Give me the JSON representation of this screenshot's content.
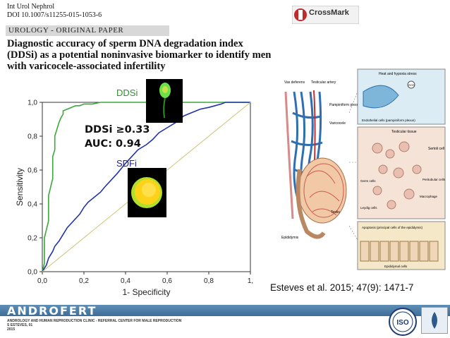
{
  "header": {
    "journal": "Int Urol Nephrol",
    "doi": "DOI 10.1007/s11255-015-1053-6",
    "crossmark": "CrossMark",
    "section": "UROLOGY - ORIGINAL PAPER"
  },
  "paper": {
    "title_lines": [
      "Diagnostic accuracy of sperm DNA degradation index",
      "(DDSi) as a potential noninvasive biomarker to identify men",
      "with varicocele-associated infertility"
    ]
  },
  "annotations": {
    "threshold": "DDSi ≥0.33",
    "auc": "AUC: 0.94"
  },
  "chart_data": {
    "type": "line",
    "xlabel": "1- Specificity",
    "ylabel": "Sensitivity",
    "xlim": [
      0,
      1
    ],
    "ylim": [
      0,
      1
    ],
    "x_ticks": [
      "0,0",
      "0,2",
      "0,4",
      "0,6",
      "0,8",
      "1,"
    ],
    "y_ticks": [
      "0,0",
      "0,2",
      "0,4",
      "0,6",
      "0,8",
      "1,0"
    ],
    "grid": false,
    "series": [
      {
        "name": "DDSi",
        "color": "#3aa83a",
        "x": [
          0,
          0.01,
          0.01,
          0.03,
          0.03,
          0.05,
          0.05,
          0.06,
          0.06,
          0.07,
          0.08,
          0.09,
          0.1,
          0.1,
          0.12,
          0.14,
          0.16,
          0.18,
          0.2,
          0.24,
          0.28,
          0.35,
          0.5,
          0.75,
          1.0
        ],
        "y": [
          0,
          0.05,
          0.2,
          0.3,
          0.45,
          0.55,
          0.68,
          0.72,
          0.8,
          0.84,
          0.88,
          0.91,
          0.93,
          0.95,
          0.96,
          0.97,
          0.98,
          0.98,
          0.99,
          0.99,
          1.0,
          1.0,
          1.0,
          1.0,
          1.0
        ]
      },
      {
        "name": "SDFi",
        "color": "#2233aa",
        "x": [
          0,
          0.02,
          0.03,
          0.05,
          0.06,
          0.08,
          0.1,
          0.12,
          0.15,
          0.18,
          0.2,
          0.22,
          0.25,
          0.28,
          0.3,
          0.33,
          0.36,
          0.38,
          0.4,
          0.43,
          0.46,
          0.5,
          0.53,
          0.56,
          0.6,
          0.64,
          0.68,
          0.72,
          0.76,
          0.8,
          0.83,
          0.86,
          0.88,
          1.0
        ],
        "y": [
          0,
          0.04,
          0.08,
          0.12,
          0.15,
          0.18,
          0.22,
          0.26,
          0.3,
          0.34,
          0.38,
          0.41,
          0.44,
          0.47,
          0.5,
          0.54,
          0.58,
          0.61,
          0.64,
          0.68,
          0.72,
          0.75,
          0.78,
          0.82,
          0.85,
          0.88,
          0.92,
          0.94,
          0.96,
          0.97,
          0.98,
          0.99,
          1.0,
          1.0
        ]
      },
      {
        "name": "reference",
        "color": "#cfc47a",
        "x": [
          0,
          1
        ],
        "y": [
          0,
          1
        ]
      }
    ]
  },
  "figure": {
    "labels": {
      "vas_deferens": "Vas deferens",
      "testicular_artery": "Testicular artery",
      "pampiniform": "Pampiniform plexus",
      "varicocele": "Varicocele",
      "testis": "Testis",
      "epididymis": "Epididymis",
      "heat_stress": "Heat and hypoxia stress",
      "endothelial": "Endothelial cells (pampiniform plexus)",
      "testicular_tissue": "Testicular tissue",
      "sertoli": "Sertoli cell",
      "germ_cells": "Germ cells",
      "peritubular": "Peritubular cells",
      "macrophage": "Macrophage",
      "leydig": "Leydig cells",
      "apoptosis": "Apoptosis (principal cells of the epididymis)",
      "epididymal_cells": "Epididymal cells",
      "ros": "ROS",
      "no": "NO"
    }
  },
  "citation": "Esteves et al. 2015; 47(9): 1471-7",
  "footer": {
    "brand": "ANDROFERT",
    "subtitle": "ANDROLOGY AND HUMAN REPRODUCTION CLINIC - REFERRAL CENTER FOR MALE REPRODUCTION",
    "author": "S ESTEVES, 01",
    "year": "2015",
    "iso": "ISO"
  }
}
